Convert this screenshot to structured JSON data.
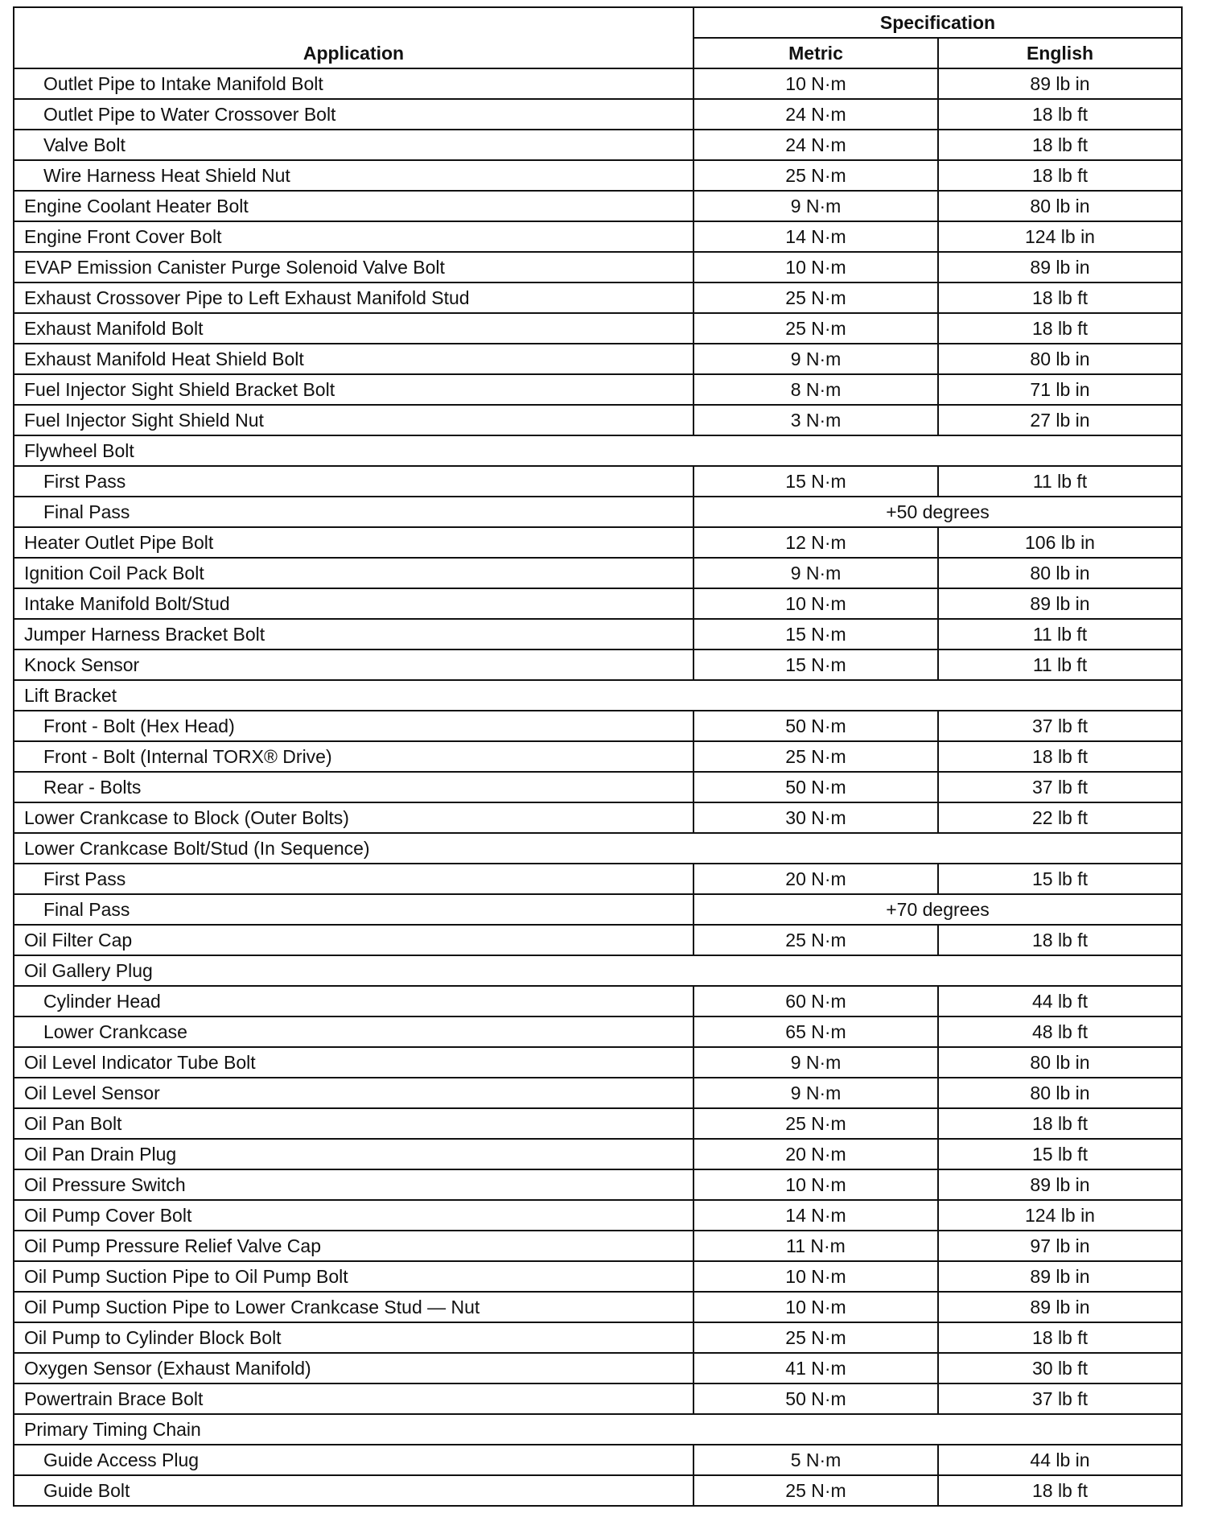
{
  "header": {
    "application": "Application",
    "specification": "Specification",
    "metric": "Metric",
    "english": "English"
  },
  "rows": [
    {
      "app": "Outlet Pipe to Intake Manifold Bolt",
      "indent": true,
      "metric": "10 N·m",
      "english": "89 lb in"
    },
    {
      "app": "Outlet Pipe to Water Crossover Bolt",
      "indent": true,
      "metric": "24 N·m",
      "english": "18 lb ft"
    },
    {
      "app": "Valve Bolt",
      "indent": true,
      "metric": "24 N·m",
      "english": "18 lb ft"
    },
    {
      "app": "Wire Harness Heat Shield Nut",
      "indent": true,
      "metric": "25 N·m",
      "english": "18 lb ft"
    },
    {
      "app": "Engine Coolant Heater Bolt",
      "metric": "9 N·m",
      "english": "80 lb in"
    },
    {
      "app": "Engine Front Cover Bolt",
      "metric": "14 N·m",
      "english": "124 lb in"
    },
    {
      "app": "EVAP Emission Canister Purge Solenoid Valve Bolt",
      "metric": "10 N·m",
      "english": "89 lb in"
    },
    {
      "app": "Exhaust Crossover Pipe to Left Exhaust Manifold Stud",
      "metric": "25 N·m",
      "english": "18 lb ft"
    },
    {
      "app": "Exhaust Manifold Bolt",
      "metric": "25 N·m",
      "english": "18 lb ft"
    },
    {
      "app": "Exhaust Manifold Heat Shield Bolt",
      "metric": "9 N·m",
      "english": "80 lb in"
    },
    {
      "app": "Fuel Injector Sight Shield Bracket Bolt",
      "metric": "8 N·m",
      "english": "71 lb in"
    },
    {
      "app": "Fuel Injector Sight Shield Nut",
      "metric": "3 N·m",
      "english": "27 lb in"
    },
    {
      "app": "Flywheel Bolt",
      "group": true
    },
    {
      "app": "First Pass",
      "indent": true,
      "metric": "15 N·m",
      "english": "11 lb ft"
    },
    {
      "app": "Final Pass",
      "indent": true,
      "span": "+50 degrees"
    },
    {
      "app": "Heater Outlet Pipe Bolt",
      "metric": "12 N·m",
      "english": "106 lb in"
    },
    {
      "app": "Ignition Coil Pack Bolt",
      "metric": "9 N·m",
      "english": "80 lb in"
    },
    {
      "app": "Intake Manifold Bolt/Stud",
      "metric": "10 N·m",
      "english": "89 lb in"
    },
    {
      "app": "Jumper Harness Bracket Bolt",
      "metric": "15 N·m",
      "english": "11 lb ft"
    },
    {
      "app": "Knock Sensor",
      "metric": "15 N·m",
      "english": "11 lb ft"
    },
    {
      "app": "Lift Bracket",
      "group": true
    },
    {
      "app": "Front - Bolt (Hex Head)",
      "indent": true,
      "metric": "50 N·m",
      "english": "37 lb ft"
    },
    {
      "app": "Front - Bolt (Internal TORX® Drive)",
      "indent": true,
      "metric": "25 N·m",
      "english": "18 lb ft"
    },
    {
      "app": "Rear - Bolts",
      "indent": true,
      "metric": "50 N·m",
      "english": "37 lb ft"
    },
    {
      "app": "Lower Crankcase to Block (Outer Bolts)",
      "metric": "30 N·m",
      "english": "22 lb ft"
    },
    {
      "app": "Lower Crankcase Bolt/Stud (In Sequence)",
      "group": true
    },
    {
      "app": "First Pass",
      "indent": true,
      "metric": "20 N·m",
      "english": "15 lb ft"
    },
    {
      "app": "Final Pass",
      "indent": true,
      "span": "+70 degrees"
    },
    {
      "app": "Oil Filter Cap",
      "metric": "25 N·m",
      "english": "18 lb ft"
    },
    {
      "app": "Oil Gallery Plug",
      "group": true
    },
    {
      "app": "Cylinder Head",
      "indent": true,
      "metric": "60 N·m",
      "english": "44 lb ft"
    },
    {
      "app": "Lower Crankcase",
      "indent": true,
      "metric": "65 N·m",
      "english": "48 lb ft"
    },
    {
      "app": "Oil Level Indicator Tube Bolt",
      "metric": "9 N·m",
      "english": "80 lb in"
    },
    {
      "app": "Oil Level Sensor",
      "metric": "9 N·m",
      "english": "80 lb in"
    },
    {
      "app": "Oil Pan Bolt",
      "metric": "25 N·m",
      "english": "18 lb ft"
    },
    {
      "app": "Oil Pan Drain Plug",
      "metric": "20 N·m",
      "english": "15 lb ft"
    },
    {
      "app": "Oil Pressure Switch",
      "metric": "10 N·m",
      "english": "89 lb in"
    },
    {
      "app": "Oil Pump Cover Bolt",
      "metric": "14 N·m",
      "english": "124 lb in"
    },
    {
      "app": "Oil Pump Pressure Relief Valve Cap",
      "metric": "11 N·m",
      "english": "97 lb in"
    },
    {
      "app": "Oil Pump Suction Pipe to Oil Pump Bolt",
      "metric": "10 N·m",
      "english": "89 lb in"
    },
    {
      "app": "Oil Pump Suction Pipe to Lower Crankcase Stud — Nut",
      "metric": "10 N·m",
      "english": "89 lb in"
    },
    {
      "app": "Oil Pump to Cylinder Block Bolt",
      "metric": "25 N·m",
      "english": "18 lb ft"
    },
    {
      "app": "Oxygen Sensor (Exhaust Manifold)",
      "metric": "41 N·m",
      "english": "30 lb ft"
    },
    {
      "app": "Powertrain Brace Bolt",
      "metric": "50 N·m",
      "english": "37 lb ft"
    },
    {
      "app": "Primary Timing Chain",
      "group": true
    },
    {
      "app": "Guide Access Plug",
      "indent": true,
      "metric": "5 N·m",
      "english": "44 lb in"
    },
    {
      "app": "Guide Bolt",
      "indent": true,
      "metric": "25 N·m",
      "english": "18 lb ft"
    }
  ]
}
